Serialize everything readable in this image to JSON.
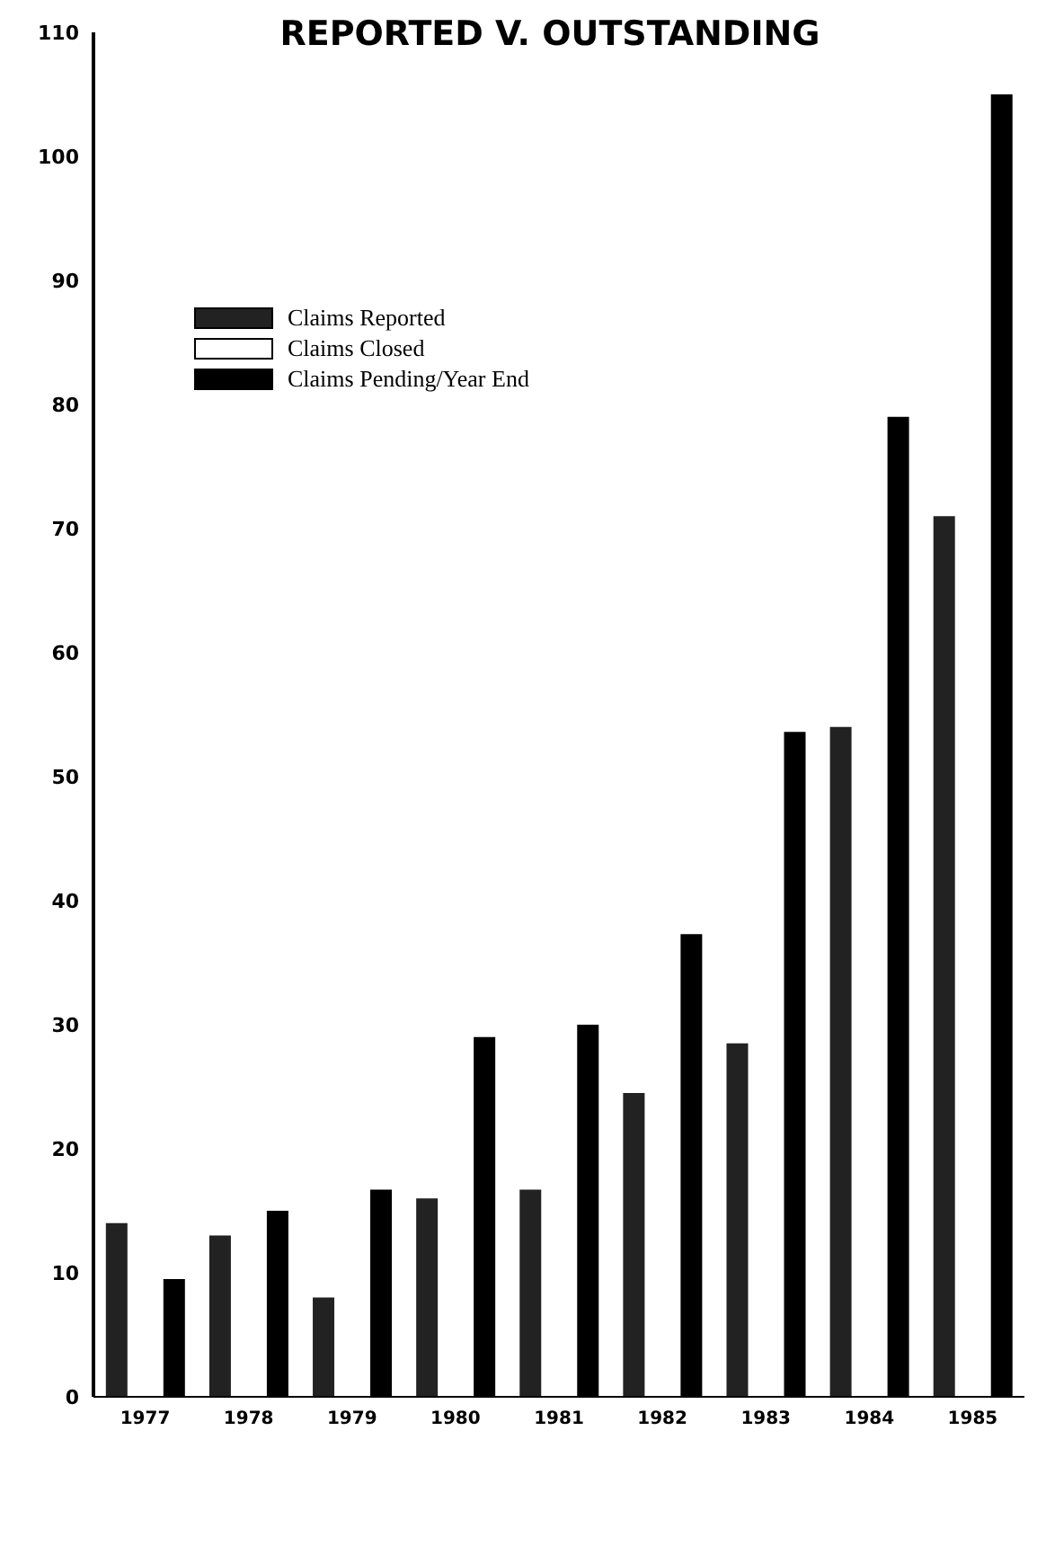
{
  "chart_data": {
    "type": "bar",
    "title": "REPORTED V. OUTSTANDING",
    "categories": [
      "1977",
      "1978",
      "1979",
      "1980",
      "1981",
      "1982",
      "1983",
      "1984",
      "1985"
    ],
    "series": [
      {
        "name": "Claims Reported",
        "color": "#222222",
        "values": [
          14,
          13,
          8,
          16,
          16.7,
          24.5,
          28.5,
          54,
          71
        ]
      },
      {
        "name": "Claims Closed",
        "color": "#ffffff",
        "values": [
          null,
          null,
          null,
          null,
          null,
          null,
          null,
          null,
          null
        ]
      },
      {
        "name": "Claims Pending/Year End",
        "color": "#000000",
        "values": [
          9.5,
          15,
          16.7,
          29,
          30,
          37.3,
          53.6,
          79,
          105
        ]
      }
    ],
    "ylim": [
      0,
      110
    ],
    "yticks": [
      0,
      10,
      20,
      30,
      40,
      50,
      60,
      70,
      80,
      90,
      100,
      110
    ],
    "grid": false,
    "legend": "top left"
  }
}
